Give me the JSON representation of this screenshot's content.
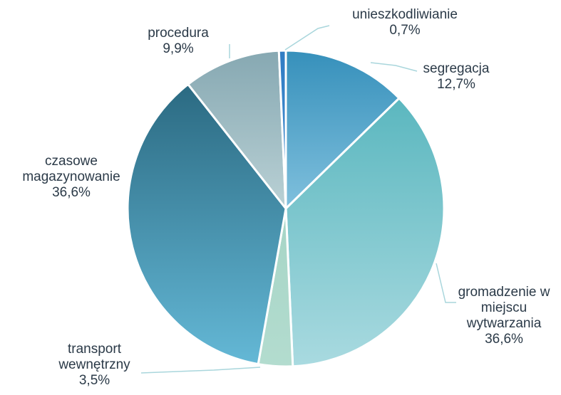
{
  "chart_data": {
    "type": "pie",
    "categories": [
      "segregacja",
      "gromadzenie w miejscu wytwarzania",
      "transport wewnętrzny",
      "czasowe magazynowanie",
      "procedura",
      "unieszkodliwianie"
    ],
    "values": [
      12.7,
      36.6,
      3.5,
      36.6,
      9.9,
      0.7
    ],
    "value_labels": [
      "12,7%",
      "36,6%",
      "3,5%",
      "36,6%",
      "9,9%",
      "0,7%"
    ],
    "colors": [
      [
        "#3690bb",
        "#80c0dd"
      ],
      [
        "#5bb7bf",
        "#a9dae0"
      ],
      [
        "#a6d5c6",
        "#b3dccf"
      ],
      [
        "#2b6a82",
        "#64b8d6"
      ],
      [
        "#86a8b2",
        "#bad1d5"
      ],
      [
        "#2f7cc4",
        "#4a93d2"
      ]
    ]
  }
}
